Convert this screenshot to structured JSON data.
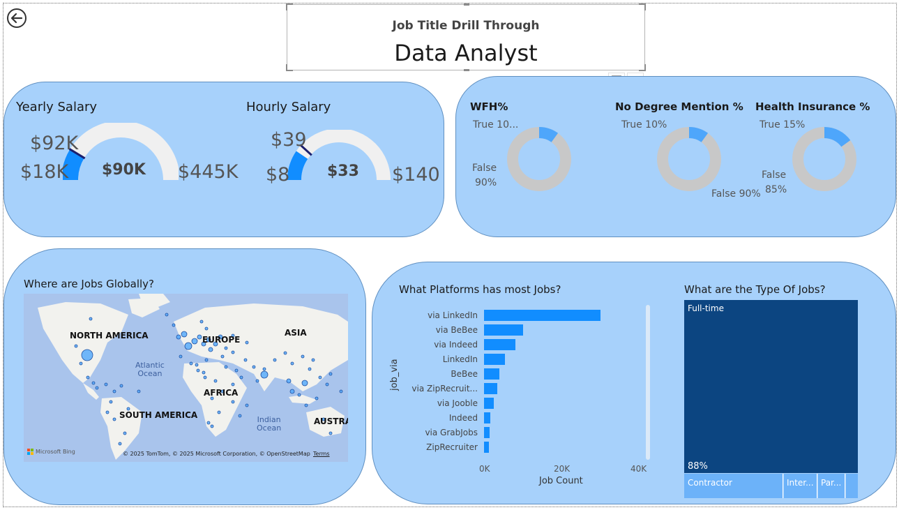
{
  "header": {
    "subtitle": "Job Title Drill Through",
    "title": "Data Analyst"
  },
  "icons": {
    "back": "back-arrow-icon",
    "filter": "filter-icon",
    "more": "more-options-icon"
  },
  "toolbar": {
    "more_label": "···"
  },
  "salary": {
    "yearly": {
      "title": "Yearly Salary",
      "min": "$18K",
      "max": "$445K",
      "value": "$90K",
      "target": "$92K",
      "gauge": {
        "min": 18000,
        "max": 445000,
        "value": 90000,
        "target": 92000
      }
    },
    "hourly": {
      "title": "Hourly Salary",
      "min": "$8",
      "max": "$140",
      "value": "$33",
      "target": "$39",
      "gauge": {
        "min": 8,
        "max": 140,
        "value": 33,
        "target": 39
      }
    }
  },
  "donuts": {
    "wfh": {
      "title": "WFH%",
      "true_label": "True 10...",
      "false_label_1": "False",
      "false_label_2": "90%",
      "true_pct": 0.1
    },
    "degree": {
      "title": "No Degree Mention %",
      "true_label": "True 10%",
      "false_label": "False 90%",
      "true_pct": 0.1
    },
    "health": {
      "title": "Health Insurance %",
      "true_label": "True 15%",
      "false_label_1": "False",
      "false_label_2": "85%",
      "true_pct": 0.15
    }
  },
  "map": {
    "title": "Where are Jobs Globally?",
    "regions": {
      "north_america": "NORTH AMERICA",
      "europe": "EUROPE",
      "asia": "ASIA",
      "africa": "AFRICA",
      "south_america": "SOUTH AMERICA",
      "australia": "AUSTRAI"
    },
    "oceans": {
      "atlantic_1": "Atlantic",
      "atlantic_2": "Ocean",
      "indian_1": "Indian",
      "indian_2": "Ocean"
    },
    "bing": "Microsoft Bing",
    "credit": "© 2025 TomTom, © 2025 Microsoft Corporation, © OpenStreetMap",
    "terms": "Terms"
  },
  "platforms": {
    "title": "What Platforms has most Jobs?",
    "ylabel": "job_via",
    "xlabel": "Job Count",
    "ticks": [
      "0K",
      "20K",
      "40K"
    ]
  },
  "chart_data": {
    "type": "bar",
    "orientation": "horizontal",
    "categories": [
      "via LinkedIn",
      "via BeBee",
      "via Indeed",
      "LinkedIn",
      "BeBee",
      "via ZipRecruit...",
      "via Jooble",
      "Indeed",
      "via GrabJobs",
      "ZipRecruiter"
    ],
    "values": [
      30200,
      10100,
      8200,
      5400,
      3900,
      3400,
      2500,
      1600,
      1500,
      1200
    ],
    "xlabel": "Job Count",
    "ylabel": "job_via",
    "xlim": [
      0,
      40000
    ],
    "color": "#118dff"
  },
  "job_types": {
    "title": "What are the Type Of Jobs?",
    "items": [
      {
        "label": "Full-time",
        "pct_label": "88%"
      },
      {
        "label": "Contractor"
      },
      {
        "label": "Inter..."
      },
      {
        "label": "Par..."
      }
    ]
  },
  "colors": {
    "panel": "#a7d1fb",
    "accent": "#118dff",
    "gauge_track": "#f0f0f0",
    "donut_rest": "#c8c8c8",
    "donut_true": "#4ea6fb",
    "treemap_main": "#0c4581",
    "treemap_minor": "#6cb2f9"
  }
}
